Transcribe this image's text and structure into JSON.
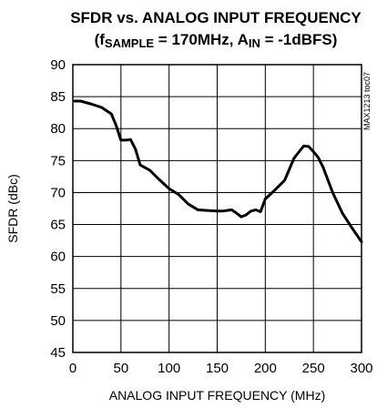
{
  "chart_data": {
    "type": "line",
    "title": "SFDR vs. ANALOG INPUT FREQUENCY",
    "subtitle": {
      "open": "(f",
      "sub1": "SAMPLE",
      "mid": " = 170MHz, A",
      "sub2": "IN",
      "close": " = -1dBFS)"
    },
    "xlabel": "ANALOG INPUT FREQUENCY (MHz)",
    "ylabel": "SFDR (dBc)",
    "xlim": [
      0,
      300
    ],
    "ylim": [
      45,
      90
    ],
    "xticks": [
      0,
      50,
      100,
      150,
      200,
      250,
      300
    ],
    "yticks": [
      45,
      50,
      55,
      60,
      65,
      70,
      75,
      80,
      85,
      90
    ],
    "grid": true,
    "annotation": "MAX1213 toc07",
    "colors": {
      "line": "#000000",
      "grid": "#000000",
      "background": "#ffffff"
    },
    "series": [
      {
        "x": [
          2,
          8,
          20,
          30,
          40,
          45,
          50,
          55,
          60,
          65,
          70,
          75,
          80,
          90,
          100,
          110,
          120,
          130,
          140,
          150,
          155,
          160,
          165,
          170,
          175,
          180,
          185,
          190,
          195,
          200,
          210,
          220,
          230,
          240,
          245,
          250,
          255,
          260,
          270,
          280,
          290,
          300
        ],
        "y": [
          84.3,
          84.3,
          83.8,
          83.3,
          82.3,
          80.5,
          78.2,
          78.2,
          78.3,
          76.8,
          74.3,
          73.9,
          73.5,
          72.0,
          70.6,
          69.7,
          68.2,
          67.3,
          67.2,
          67.1,
          67.1,
          67.2,
          67.3,
          66.8,
          66.2,
          66.5,
          67.1,
          67.3,
          67.0,
          69.0,
          70.4,
          71.9,
          75.4,
          77.3,
          77.2,
          76.4,
          75.5,
          74.0,
          70.0,
          66.8,
          64.5,
          62.3
        ]
      }
    ]
  }
}
